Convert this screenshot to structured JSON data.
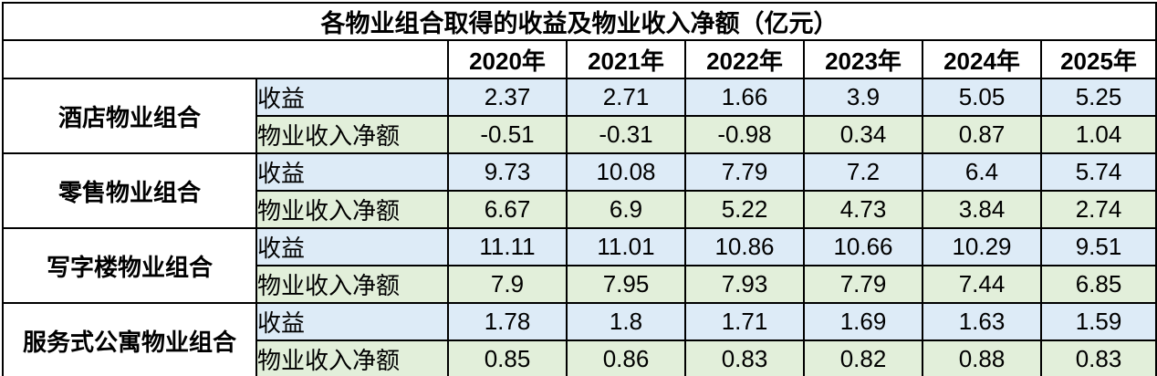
{
  "title": "各物业组合取得的收益及物业收入净额（亿元）",
  "table": {
    "year_headers": [
      "2020年",
      "2021年",
      "2022年",
      "2023年",
      "2024年",
      "2025年"
    ],
    "groups": [
      {
        "name": "酒店物业组合",
        "rows": [
          {
            "label": "收益",
            "values": [
              "2.37",
              "2.71",
              "1.66",
              "3.9",
              "5.05",
              "5.25"
            ]
          },
          {
            "label": "物业收入净额",
            "values": [
              "-0.51",
              "-0.31",
              "-0.98",
              "0.34",
              "0.87",
              "1.04"
            ]
          }
        ]
      },
      {
        "name": "零售物业组合",
        "rows": [
          {
            "label": "收益",
            "values": [
              "9.73",
              "10.08",
              "7.79",
              "7.2",
              "6.4",
              "5.74"
            ]
          },
          {
            "label": "物业收入净额",
            "values": [
              "6.67",
              "6.9",
              "5.22",
              "4.73",
              "3.84",
              "2.74"
            ]
          }
        ]
      },
      {
        "name": "写字楼物业组合",
        "rows": [
          {
            "label": "收益",
            "values": [
              "11.11",
              "11.01",
              "10.86",
              "10.66",
              "10.29",
              "9.51"
            ]
          },
          {
            "label": "物业收入净额",
            "values": [
              "7.9",
              "7.95",
              "7.93",
              "7.79",
              "7.44",
              "6.85"
            ]
          }
        ]
      },
      {
        "name": "服务式公寓物业组合",
        "rows": [
          {
            "label": "收益",
            "values": [
              "1.78",
              "1.8",
              "1.71",
              "1.69",
              "1.63",
              "1.59"
            ]
          },
          {
            "label": "物业收入净额",
            "values": [
              "0.85",
              "0.86",
              "0.83",
              "0.82",
              "0.88",
              "0.83"
            ]
          }
        ]
      }
    ]
  },
  "colors": {
    "revenue_row_bg": "#ddebf7",
    "net_income_row_bg": "#e2efda",
    "border": "#000000",
    "background": "#ffffff",
    "text": "#000000"
  },
  "chart_data": {
    "type": "table",
    "title": "各物业组合取得的收益及物业收入净额（亿元）",
    "columns": [
      "2020年",
      "2021年",
      "2022年",
      "2023年",
      "2024年",
      "2025年"
    ],
    "unit": "亿元",
    "groups": [
      {
        "name": "酒店物业组合",
        "series": [
          {
            "name": "收益",
            "values": [
              2.37,
              2.71,
              1.66,
              3.9,
              5.05,
              5.25
            ]
          },
          {
            "name": "物业收入净额",
            "values": [
              -0.51,
              -0.31,
              -0.98,
              0.34,
              0.87,
              1.04
            ]
          }
        ]
      },
      {
        "name": "零售物业组合",
        "series": [
          {
            "name": "收益",
            "values": [
              9.73,
              10.08,
              7.79,
              7.2,
              6.4,
              5.74
            ]
          },
          {
            "name": "物业收入净额",
            "values": [
              6.67,
              6.9,
              5.22,
              4.73,
              3.84,
              2.74
            ]
          }
        ]
      },
      {
        "name": "写字楼物业组合",
        "series": [
          {
            "name": "收益",
            "values": [
              11.11,
              11.01,
              10.86,
              10.66,
              10.29,
              9.51
            ]
          },
          {
            "name": "物业收入净额",
            "values": [
              7.9,
              7.95,
              7.93,
              7.79,
              7.44,
              6.85
            ]
          }
        ]
      },
      {
        "name": "服务式公寓物业组合",
        "series": [
          {
            "name": "收益",
            "values": [
              1.78,
              1.8,
              1.71,
              1.69,
              1.63,
              1.59
            ]
          },
          {
            "name": "物业收入净额",
            "values": [
              0.85,
              0.86,
              0.83,
              0.82,
              0.88,
              0.83
            ]
          }
        ]
      }
    ]
  }
}
